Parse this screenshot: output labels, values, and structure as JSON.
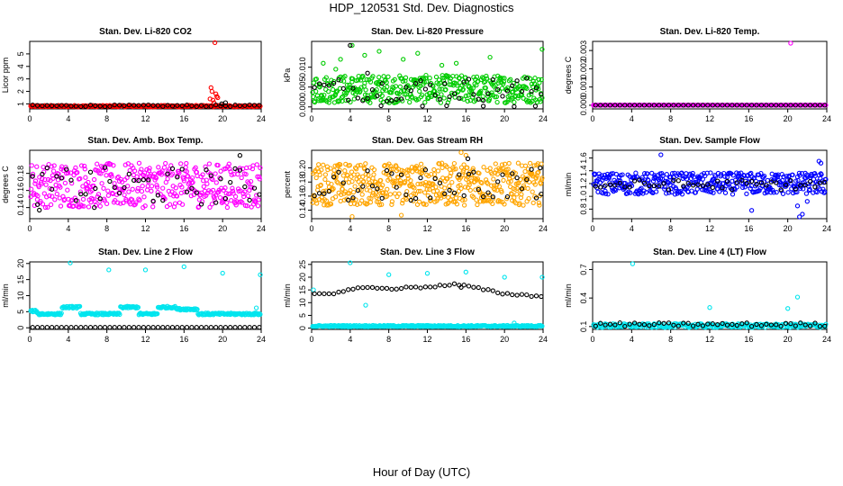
{
  "page": {
    "title": "HDP_120531  Std. Dev. Diagnostics",
    "x_caption": "Hour of Day (UTC)"
  },
  "chart_data": [
    {
      "type": "scatter",
      "title": "Stan. Dev. Li-820 CO2",
      "ylabel": "Licor ppm",
      "xlim": [
        0,
        24
      ],
      "ylim": [
        0.6,
        6
      ],
      "xticks": [
        0,
        4,
        8,
        12,
        16,
        20,
        24
      ],
      "yticks": [
        {
          "v": 1,
          "t": "1"
        },
        {
          "v": 2,
          "t": "2"
        },
        {
          "v": 3,
          "t": "3"
        },
        {
          "v": 4,
          "t": "4"
        },
        {
          "v": 5,
          "t": "5"
        }
      ],
      "series": [
        {
          "color": "#ff0000",
          "kind": "band",
          "base": 0.82,
          "spread": 0.06,
          "n": 300,
          "x0": 0.1,
          "x1": 23.9,
          "extra": [
            [
              19.2,
              5.9
            ],
            [
              18.8,
              2.3
            ],
            [
              18.9,
              2.0
            ],
            [
              19.0,
              1.3
            ],
            [
              19.1,
              1.1
            ],
            [
              19.4,
              1.6
            ],
            [
              19.5,
              1.5
            ],
            [
              18.7,
              1.4
            ],
            [
              19.3,
              1.8
            ]
          ]
        },
        {
          "color": "#000000",
          "kind": "band",
          "base": 0.85,
          "spread": 0.07,
          "n": 48,
          "x0": 0.3,
          "x1": 23.8,
          "extra": [
            [
              19.9,
              1.0
            ],
            [
              20.3,
              1.1
            ]
          ]
        }
      ]
    },
    {
      "type": "scatter",
      "title": "Stan. Dev. Li-820 Pressure",
      "ylabel": "kPa",
      "xlim": [
        0,
        24
      ],
      "ylim": [
        -0.0005,
        0.0165
      ],
      "xticks": [
        0,
        4,
        8,
        12,
        16,
        20,
        24
      ],
      "yticks": [
        {
          "v": 0,
          "t": "0.000"
        },
        {
          "v": 0.005,
          "t": "0.005"
        },
        {
          "v": 0.01,
          "t": "0.010"
        }
      ],
      "series": [
        {
          "color": "#00cc00",
          "kind": "band",
          "base": 0.0045,
          "spread": 0.0035,
          "n": 420,
          "x0": 0.1,
          "x1": 23.9,
          "extra": [
            [
              1.2,
              0.011
            ],
            [
              3.0,
              0.012
            ],
            [
              4.2,
              0.0155
            ],
            [
              5.5,
              0.013
            ],
            [
              7.0,
              0.014
            ],
            [
              9.5,
              0.012
            ],
            [
              11.0,
              0.0135
            ],
            [
              15.0,
              0.011
            ],
            [
              18.5,
              0.0125
            ],
            [
              23.9,
              0.0145
            ],
            [
              2.5,
              0.0095
            ],
            [
              13.5,
              0.0105
            ]
          ]
        },
        {
          "color": "#000000",
          "kind": "band",
          "base": 0.0045,
          "spread": 0.003,
          "n": 48,
          "x0": 0.3,
          "x1": 23.8,
          "extra": [
            [
              4.0,
              0.0155
            ],
            [
              5.8,
              0.0085
            ],
            [
              7.2,
              0.0003
            ],
            [
              11.5,
              0.0002
            ],
            [
              14.0,
              0.0003
            ],
            [
              17.8,
              0.0002
            ],
            [
              21.0,
              0.0001
            ],
            [
              23.2,
              0.0002
            ]
          ]
        }
      ]
    },
    {
      "type": "scatter",
      "title": "Stan. Dev. Li-820 Temp.",
      "ylabel": "degrees C",
      "xlim": [
        0,
        24
      ],
      "ylim": [
        -0.0002,
        0.0035
      ],
      "xticks": [
        0,
        4,
        8,
        12,
        16,
        20,
        24
      ],
      "yticks": [
        {
          "v": 0,
          "t": "0.000"
        },
        {
          "v": 0.001,
          "t": "0.001"
        },
        {
          "v": 0.002,
          "t": "0.002"
        },
        {
          "v": 0.003,
          "t": "0.003"
        }
      ],
      "series": [
        {
          "color": "#ff00ff",
          "kind": "band",
          "base": 0.0,
          "spread": 0.0,
          "n": 300,
          "x0": 0.0,
          "x1": 23.9,
          "extra": [
            [
              20.3,
              0.0034
            ]
          ]
        },
        {
          "color": "#000000",
          "kind": "band",
          "base": 0.0,
          "spread": 0.0,
          "n": 48,
          "x0": 0.3,
          "x1": 23.8,
          "extra": []
        }
      ]
    },
    {
      "type": "scatter",
      "title": "Stan. Dev. Amb. Box Temp.",
      "ylabel": "degrees C",
      "xlim": [
        0,
        24
      ],
      "ylim": [
        0.127,
        0.207
      ],
      "xticks": [
        0,
        4,
        8,
        12,
        16,
        20,
        24
      ],
      "yticks": [
        {
          "v": 0.14,
          "t": "0.14"
        },
        {
          "v": 0.16,
          "t": "0.16"
        },
        {
          "v": 0.18,
          "t": "0.18"
        }
      ],
      "series": [
        {
          "color": "#ff00ff",
          "kind": "band",
          "base": 0.166,
          "spread": 0.026,
          "n": 420,
          "x0": 0.1,
          "x1": 23.9,
          "extra": []
        },
        {
          "color": "#000000",
          "kind": "band",
          "base": 0.165,
          "spread": 0.022,
          "n": 48,
          "x0": 0.3,
          "x1": 23.8,
          "extra": [
            [
              21.8,
              0.201
            ],
            [
              1.0,
              0.137
            ],
            [
              6.7,
              0.14
            ]
          ]
        }
      ]
    },
    {
      "type": "scatter",
      "title": "Stan. Dev. Gas Stream RH",
      "ylabel": "percent",
      "xlim": [
        0,
        24
      ],
      "ylim": [
        0.128,
        0.225
      ],
      "xticks": [
        0,
        4,
        8,
        12,
        16,
        20,
        24
      ],
      "yticks": [
        {
          "v": 0.14,
          "t": "0.14"
        },
        {
          "v": 0.16,
          "t": "0.16"
        },
        {
          "v": 0.18,
          "t": "0.18"
        },
        {
          "v": 0.2,
          "t": "0.20"
        }
      ],
      "series": [
        {
          "color": "#ffa500",
          "kind": "band",
          "base": 0.177,
          "spread": 0.03,
          "n": 500,
          "x0": 0.1,
          "x1": 23.9,
          "extra": [
            [
              15.5,
              0.222
            ],
            [
              16.0,
              0.218
            ],
            [
              4.2,
              0.131
            ],
            [
              9.3,
              0.133
            ]
          ]
        },
        {
          "color": "#000000",
          "kind": "band",
          "base": 0.176,
          "spread": 0.022,
          "n": 48,
          "x0": 0.3,
          "x1": 23.8,
          "extra": [
            [
              16.2,
              0.213
            ],
            [
              23.7,
              0.2
            ]
          ]
        }
      ]
    },
    {
      "type": "scatter",
      "title": "Stan. Dev. Sample Flow",
      "ylabel": "ml/min",
      "xlim": [
        0,
        24
      ],
      "ylim": [
        0.65,
        1.72
      ],
      "xticks": [
        0,
        4,
        8,
        12,
        16,
        20,
        24
      ],
      "yticks": [
        {
          "v": 0.8,
          "t": "0.8"
        },
        {
          "v": 1.0,
          "t": "1.0"
        },
        {
          "v": 1.2,
          "t": "1.2"
        },
        {
          "v": 1.4,
          "t": "1.4"
        },
        {
          "v": 1.6,
          "t": "1.6"
        }
      ],
      "series": [
        {
          "color": "#0000ff",
          "kind": "band",
          "base": 1.2,
          "spread": 0.17,
          "n": 420,
          "x0": 0.1,
          "x1": 23.9,
          "extra": [
            [
              7.0,
              1.65
            ],
            [
              16.3,
              0.78
            ],
            [
              21.5,
              0.72
            ],
            [
              21.2,
              0.68
            ],
            [
              21.0,
              0.85
            ],
            [
              22.0,
              0.92
            ],
            [
              23.2,
              1.55
            ],
            [
              23.4,
              1.52
            ]
          ]
        },
        {
          "color": "#000000",
          "kind": "band",
          "base": 1.18,
          "spread": 0.08,
          "n": 48,
          "x0": 0.3,
          "x1": 23.8,
          "extra": []
        }
      ]
    },
    {
      "type": "scatter",
      "title": "Stan. Dev. Line 2 Flow",
      "ylabel": "ml/min",
      "xlim": [
        0,
        24
      ],
      "ylim": [
        -0.5,
        20.5
      ],
      "xticks": [
        0,
        4,
        8,
        12,
        16,
        20,
        24
      ],
      "yticks": [
        {
          "v": 0,
          "t": "0"
        },
        {
          "v": 5,
          "t": "5"
        },
        {
          "v": 10,
          "t": "10"
        },
        {
          "v": 15,
          "t": "15"
        },
        {
          "v": 20,
          "t": "20"
        }
      ],
      "series": [
        {
          "color": "#00e5ee",
          "kind": "steps",
          "n": 300,
          "x0": 0.1,
          "x1": 23.9,
          "levels": [
            [
              0,
              0.8,
              5.2
            ],
            [
              0.8,
              3.3,
              4.3
            ],
            [
              3.3,
              5.2,
              6.4
            ],
            [
              5.2,
              9.4,
              4.3
            ],
            [
              9.4,
              11.3,
              6.4
            ],
            [
              11.3,
              13.3,
              4.3
            ],
            [
              13.3,
              15.2,
              6.4
            ],
            [
              15.2,
              17.4,
              5.8
            ],
            [
              17.4,
              24,
              4.3
            ]
          ],
          "extra": [
            [
              4.2,
              20.2
            ],
            [
              8.2,
              18.0
            ],
            [
              12.0,
              18.0
            ],
            [
              16.0,
              19.0
            ],
            [
              20.0,
              17.0
            ],
            [
              24.0,
              16.5
            ],
            [
              23.5,
              6.2
            ]
          ]
        },
        {
          "color": "#000000",
          "kind": "band",
          "base": 0.15,
          "spread": 0.0,
          "n": 48,
          "x0": 0.3,
          "x1": 23.8,
          "extra": []
        }
      ]
    },
    {
      "type": "scatter",
      "title": "Stan. Dev. Line 3 Flow",
      "ylabel": "ml/min",
      "xlim": [
        0,
        24
      ],
      "ylim": [
        -0.5,
        26
      ],
      "xticks": [
        0,
        4,
        8,
        12,
        16,
        20,
        24
      ],
      "yticks": [
        {
          "v": 0,
          "t": "0"
        },
        {
          "v": 5,
          "t": "5"
        },
        {
          "v": 10,
          "t": "10"
        },
        {
          "v": 15,
          "t": "15"
        },
        {
          "v": 20,
          "t": "20"
        },
        {
          "v": 25,
          "t": "25"
        }
      ],
      "series": [
        {
          "color": "#00e5ee",
          "kind": "band",
          "base": 0.8,
          "spread": 0.3,
          "n": 300,
          "x0": 0.1,
          "x1": 23.9,
          "extra": [
            [
              0.2,
              15.0
            ],
            [
              4.0,
              25.8
            ],
            [
              5.6,
              9.0
            ],
            [
              8.0,
              21.0
            ],
            [
              12.0,
              21.5
            ],
            [
              16.0,
              22.0
            ],
            [
              20.0,
              20.0
            ],
            [
              24.0,
              20.0
            ],
            [
              21.0,
              2.0
            ]
          ]
        },
        {
          "color": "#000000",
          "kind": "curve",
          "n": 48,
          "x0": 0.3,
          "x1": 23.8,
          "curve": [
            [
              0,
              13.0
            ],
            [
              3.5,
              14.3
            ],
            [
              4.5,
              16.0
            ],
            [
              8,
              15.5
            ],
            [
              12,
              16.2
            ],
            [
              15,
              17.2
            ],
            [
              17,
              15.8
            ],
            [
              20,
              13.5
            ],
            [
              24,
              12.5
            ]
          ],
          "extra": [
            [
              15.5,
              16.0
            ]
          ]
        }
      ]
    },
    {
      "type": "scatter",
      "title": "Stan. Dev. Line 4 (LT) Flow",
      "ylabel": "ml/min",
      "xlim": [
        0,
        24
      ],
      "ylim": [
        0.07,
        0.78
      ],
      "xticks": [
        0,
        4,
        8,
        12,
        16,
        20,
        24
      ],
      "yticks": [
        {
          "v": 0.1,
          "t": "0.1"
        },
        {
          "v": 0.4,
          "t": "0.4"
        },
        {
          "v": 0.7,
          "t": "0.7"
        }
      ],
      "series": [
        {
          "color": "#00e5ee",
          "kind": "band",
          "base": 0.11,
          "spread": 0.02,
          "n": 300,
          "x0": 0.1,
          "x1": 23.9,
          "extra": [
            [
              4.1,
              0.76
            ],
            [
              12.0,
              0.3
            ],
            [
              20.0,
              0.29
            ],
            [
              21.0,
              0.41
            ]
          ]
        },
        {
          "color": "#000000",
          "kind": "band",
          "base": 0.12,
          "spread": 0.02,
          "n": 48,
          "x0": 0.3,
          "x1": 23.8,
          "extra": []
        }
      ]
    }
  ]
}
